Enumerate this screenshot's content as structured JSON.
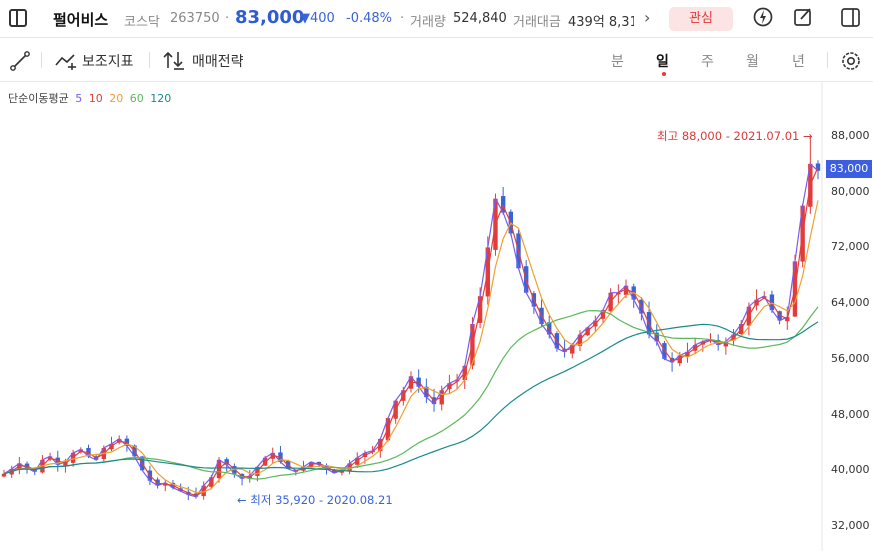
{
  "header": {
    "name": "펄어비스",
    "market": "코스닥",
    "code": "263750",
    "price": "83,000",
    "change": "▼400",
    "change_pct": "-0.48%",
    "volume_label": "거래량",
    "volume_value": "524,840",
    "amount_label": "거래대금",
    "amount_value": "439억 8,31",
    "fav_label": "관심"
  },
  "toolbar": {
    "indicator_label": "보조지표",
    "strategy_label": "매매전략",
    "periods": [
      "분",
      "일",
      "주",
      "월",
      "년"
    ],
    "active_period": "일"
  },
  "legend": {
    "title": "단순이동평균",
    "items": [
      {
        "label": "5",
        "color": "#7a5cf0"
      },
      {
        "label": "10",
        "color": "#e0413a"
      },
      {
        "label": "20",
        "color": "#f0a030"
      },
      {
        "label": "60",
        "color": "#5cb85c"
      },
      {
        "label": "120",
        "color": "#1a8a8a"
      }
    ]
  },
  "annotations": {
    "high": "최고 88,000 - 2021.07.01 →",
    "low": "← 최저 35,920 - 2020.08.21"
  },
  "current_price_badge": "83,000",
  "icons": [
    "sidebar-toggle-icon",
    "chevron-right-icon",
    "flash-icon",
    "edit-icon",
    "panel-icon",
    "draw-line-icon",
    "indicator-icon",
    "strategy-icon",
    "settings-icon"
  ],
  "chart_data": {
    "type": "candlestick",
    "y_ticks": [
      "88,000",
      "80,000",
      "72,000",
      "64,000",
      "56,000",
      "48,000",
      "40,000",
      "32,000"
    ],
    "y_range": [
      30000,
      92000
    ],
    "high": {
      "value": 88000,
      "date": "2021.07.01"
    },
    "low": {
      "value": 35920,
      "date": "2020.08.21"
    },
    "current": 83000,
    "up_color": "#e23b3b",
    "down_color": "#3a63d8",
    "close_approx": [
      39500,
      40200,
      41000,
      40300,
      39800,
      41500,
      42000,
      40800,
      41200,
      42500,
      43000,
      42000,
      41500,
      43200,
      43800,
      44500,
      43500,
      42000,
      40000,
      38500,
      37800,
      38200,
      37500,
      37000,
      36500,
      36200,
      37800,
      39000,
      41500,
      40800,
      39500,
      38800,
      39200,
      40500,
      41800,
      42500,
      41200,
      40200,
      39800,
      40500,
      41200,
      40800,
      40200,
      39600,
      40000,
      41000,
      41800,
      42500,
      42800,
      44500,
      47500,
      50000,
      51500,
      53500,
      52000,
      50500,
      49500,
      51500,
      52500,
      53000,
      55000,
      61000,
      65000,
      72000,
      79000,
      77000,
      74000,
      69000,
      65500,
      63500,
      61000,
      59500,
      57500,
      57000,
      58000,
      59500,
      60500,
      61500,
      63000,
      65500,
      65500,
      66500,
      64500,
      62500,
      59500,
      58500,
      56000,
      55500,
      56500,
      57000,
      58000,
      58500,
      58800,
      58000,
      58500,
      59500,
      61000,
      63500,
      64500,
      65000,
      63000,
      61500,
      62000,
      70000,
      78000,
      84000,
      83000
    ]
  }
}
